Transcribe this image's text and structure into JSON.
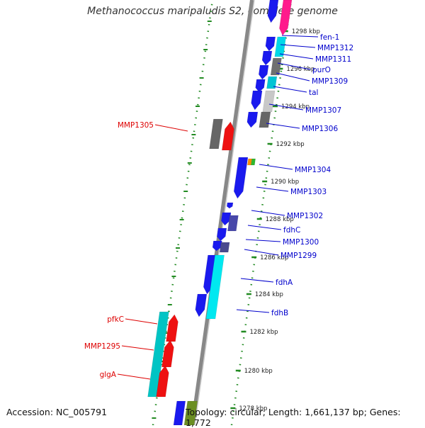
{
  "title": "Methanococcus maripaludis S2, complete genome",
  "footer": {
    "accession": "Accession: NC_005791",
    "topology": "Topology: circular; Length: 1,661,137 bp; Genes: 1,772"
  },
  "colors": {
    "forward_label": "#0000cc",
    "reverse_label": "#dd0000",
    "backbone": "#888888",
    "tick": "#228B22"
  },
  "kbp_ticks": [
    "1298 kbp",
    "1296 kbp",
    "1294 kbp",
    "1292 kbp",
    "1290 kbp",
    "1288 kbp",
    "1286 kbp",
    "1284 kbp",
    "1282 kbp",
    "1280 kbp",
    "1278 kbp"
  ],
  "gene_labels_forward": [
    "fen-1",
    "MMP1312",
    "MMP1311",
    "purO",
    "MMP1309",
    "tal",
    "MMP1307",
    "MMP1306",
    "MMP1304",
    "MMP1303",
    "MMP1302",
    "fdhC",
    "MMP1300",
    "MMP1299",
    "fdhA",
    "fdhB"
  ],
  "gene_labels_reverse": [
    "MMP1305",
    "pfkC",
    "MMP1295",
    "glgA"
  ]
}
